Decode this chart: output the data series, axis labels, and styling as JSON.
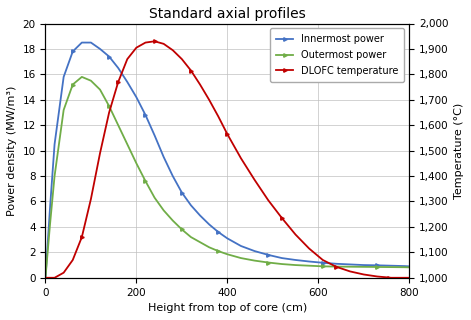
{
  "title": "Standard axial profiles",
  "xlabel": "Height from top of core (cm)",
  "ylabel_left": "Power density (MW/m³)",
  "ylabel_right": "Temperature (°C)",
  "xlim": [
    0,
    800
  ],
  "ylim_left": [
    0,
    20
  ],
  "ylim_right": [
    1000,
    2000
  ],
  "yticks_left": [
    0,
    2,
    4,
    6,
    8,
    10,
    12,
    14,
    16,
    18,
    20
  ],
  "yticks_right": [
    1000,
    1100,
    1200,
    1300,
    1400,
    1500,
    1600,
    1700,
    1800,
    1900,
    2000
  ],
  "xticks": [
    0,
    200,
    400,
    600,
    800
  ],
  "legend_labels": [
    "Innermost power",
    "Outermost power",
    "DLOFC temperature"
  ],
  "innermost_color": "#4472C4",
  "outermost_color": "#70AD47",
  "dlofc_color": "#C00000",
  "innermost_x": [
    0,
    10,
    20,
    40,
    60,
    80,
    100,
    120,
    140,
    160,
    180,
    200,
    220,
    240,
    260,
    280,
    300,
    320,
    340,
    360,
    380,
    400,
    430,
    460,
    490,
    520,
    550,
    580,
    610,
    640,
    670,
    700,
    730,
    760,
    790,
    800
  ],
  "innermost_y": [
    0.0,
    5.5,
    10.5,
    15.8,
    17.8,
    18.5,
    18.5,
    18.0,
    17.4,
    16.5,
    15.4,
    14.2,
    12.8,
    11.2,
    9.5,
    8.0,
    6.7,
    5.7,
    4.9,
    4.2,
    3.6,
    3.1,
    2.5,
    2.1,
    1.8,
    1.55,
    1.4,
    1.28,
    1.18,
    1.1,
    1.05,
    1.0,
    0.98,
    0.95,
    0.92,
    0.9
  ],
  "outermost_x": [
    0,
    10,
    20,
    40,
    60,
    80,
    100,
    120,
    140,
    160,
    180,
    200,
    220,
    240,
    260,
    280,
    300,
    320,
    340,
    360,
    380,
    400,
    430,
    460,
    490,
    520,
    550,
    580,
    610,
    640,
    670,
    700,
    730,
    760,
    790,
    800
  ],
  "outermost_y": [
    0.0,
    4.2,
    8.0,
    13.2,
    15.2,
    15.8,
    15.5,
    14.8,
    13.5,
    12.0,
    10.5,
    9.0,
    7.6,
    6.3,
    5.3,
    4.5,
    3.8,
    3.2,
    2.8,
    2.4,
    2.1,
    1.85,
    1.55,
    1.35,
    1.2,
    1.08,
    1.0,
    0.95,
    0.9,
    0.88,
    0.87,
    0.86,
    0.85,
    0.84,
    0.83,
    0.82
  ],
  "dlofc_x": [
    0,
    20,
    40,
    60,
    80,
    100,
    120,
    140,
    160,
    180,
    200,
    220,
    240,
    260,
    280,
    300,
    320,
    340,
    360,
    380,
    400,
    430,
    460,
    490,
    520,
    550,
    580,
    610,
    640,
    670,
    700,
    730,
    755,
    760,
    800
  ],
  "dlofc_y": [
    1000,
    1000,
    1020,
    1070,
    1160,
    1310,
    1490,
    1650,
    1770,
    1860,
    1905,
    1925,
    1930,
    1920,
    1895,
    1860,
    1815,
    1760,
    1700,
    1635,
    1565,
    1470,
    1385,
    1305,
    1235,
    1170,
    1115,
    1070,
    1043,
    1025,
    1013,
    1005,
    1001,
    1000,
    1000
  ]
}
